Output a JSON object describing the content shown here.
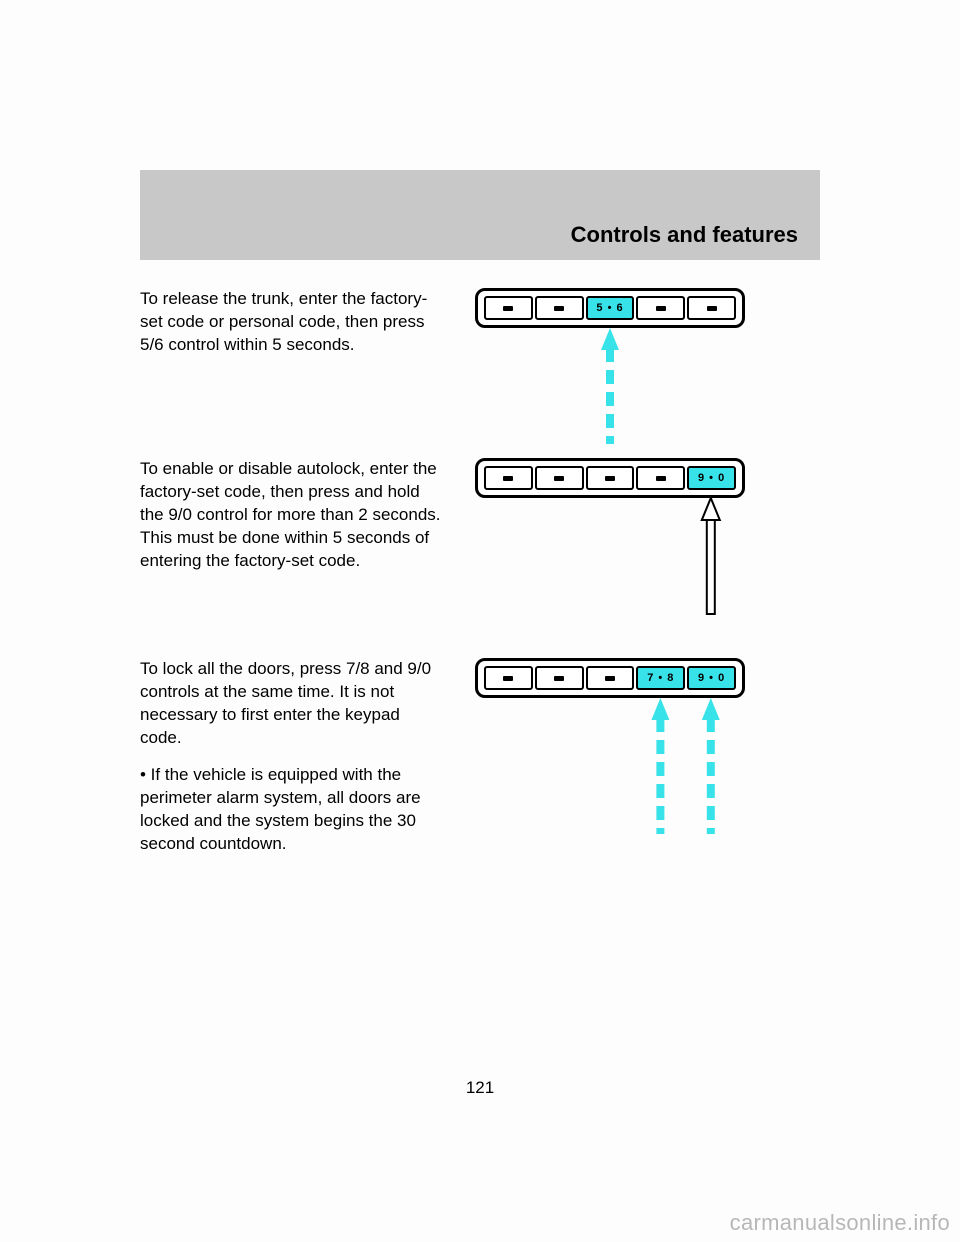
{
  "header": {
    "title": "Controls and features"
  },
  "section1": {
    "text": "To release the trunk, enter the factory-set code or personal code, then press 5/6 control within 5 seconds.",
    "keypad": {
      "keys": [
        {
          "label": "",
          "lit": false
        },
        {
          "label": "",
          "lit": false
        },
        {
          "label": "5 • 6",
          "lit": true
        },
        {
          "label": "",
          "lit": false
        },
        {
          "label": "",
          "lit": false
        }
      ]
    },
    "arrow": {
      "color": "#37e2e8",
      "dashed": true,
      "key_index": 2
    }
  },
  "section2": {
    "text": "To enable or disable autolock, enter the factory-set code, then press and hold the 9/0 control for more than 2 seconds. This must be done within 5 seconds of entering the factory-set code.",
    "keypad": {
      "keys": [
        {
          "label": "",
          "lit": false
        },
        {
          "label": "",
          "lit": false
        },
        {
          "label": "",
          "lit": false
        },
        {
          "label": "",
          "lit": false
        },
        {
          "label": "9 • 0",
          "lit": true
        }
      ]
    },
    "arrow": {
      "color": "#ffffff",
      "stroke": "#000000",
      "dashed": false,
      "key_index": 4
    }
  },
  "section3": {
    "text": "To lock all the doors, press 7/8 and 9/0 controls at the same time. It is not necessary to first enter the keypad code.",
    "bullet": "• If the vehicle is equipped with the perimeter alarm system, all doors are locked and the system begins the 30 second countdown.",
    "keypad": {
      "keys": [
        {
          "label": "",
          "lit": false
        },
        {
          "label": "",
          "lit": false
        },
        {
          "label": "",
          "lit": false
        },
        {
          "label": "7 • 8",
          "lit": true
        },
        {
          "label": "9 • 0",
          "lit": true
        }
      ]
    },
    "arrows": [
      {
        "color": "#37e2e8",
        "dashed": true,
        "key_index": 3
      },
      {
        "color": "#37e2e8",
        "dashed": true,
        "key_index": 4
      }
    ]
  },
  "page_number": "121",
  "watermark": "carmanualsonline.info"
}
